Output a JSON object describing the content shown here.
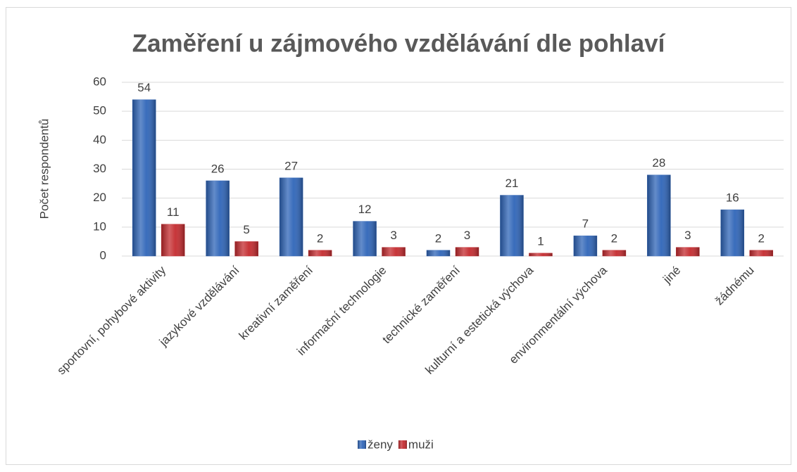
{
  "chart_data": {
    "type": "bar",
    "title": "Zaměření u zájmového vzdělávání dle pohlaví",
    "y_label": "Počet respondentů",
    "categories": [
      "sportovní, pohybové aktivity",
      "jazykové vzdělávání",
      "kreativní zaměření",
      "informační technologie",
      "technické zaměření",
      "kulturní a estetická výchova",
      "environmentální výchova",
      "jiné",
      "žádnému"
    ],
    "series": [
      {
        "name": "ženy",
        "color": "#2f65b8",
        "values": [
          54,
          26,
          27,
          12,
          2,
          21,
          7,
          28,
          16
        ]
      },
      {
        "name": "muži",
        "color": "#c42b2f",
        "values": [
          11,
          5,
          2,
          3,
          3,
          1,
          2,
          3,
          2
        ]
      }
    ],
    "ylim": [
      0,
      60
    ],
    "yticks": [
      0,
      10,
      20,
      30,
      40,
      50,
      60
    ],
    "grid": true,
    "legend": "bottom",
    "data_labels": true
  }
}
